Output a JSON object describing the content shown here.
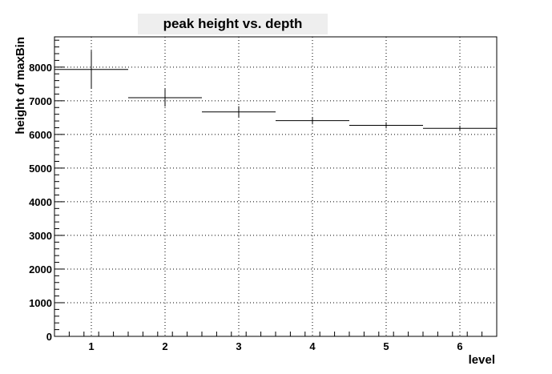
{
  "chart_data": {
    "type": "scatter",
    "title": "peak height vs. depth",
    "xlabel": "level",
    "ylabel": "height of maxBin",
    "xlim": [
      0.5,
      6.5
    ],
    "ylim": [
      0,
      8900
    ],
    "grid": true,
    "x_ticks": [
      1,
      2,
      3,
      4,
      5,
      6
    ],
    "y_ticks": [
      0,
      1000,
      2000,
      3000,
      4000,
      5000,
      6000,
      7000,
      8000
    ],
    "series": [
      {
        "points": [
          {
            "x": 1,
            "y": 7930,
            "xerr": 0.5,
            "yerr": 560
          },
          {
            "x": 2,
            "y": 7090,
            "xerr": 0.5,
            "yerr": 260
          },
          {
            "x": 3,
            "y": 6670,
            "xerr": 0.5,
            "yerr": 170
          },
          {
            "x": 4,
            "y": 6410,
            "xerr": 0.5,
            "yerr": 110
          },
          {
            "x": 5,
            "y": 6270,
            "xerr": 0.5,
            "yerr": 90
          },
          {
            "x": 6,
            "y": 6180,
            "xerr": 0.5,
            "yerr": 80
          }
        ]
      }
    ]
  }
}
